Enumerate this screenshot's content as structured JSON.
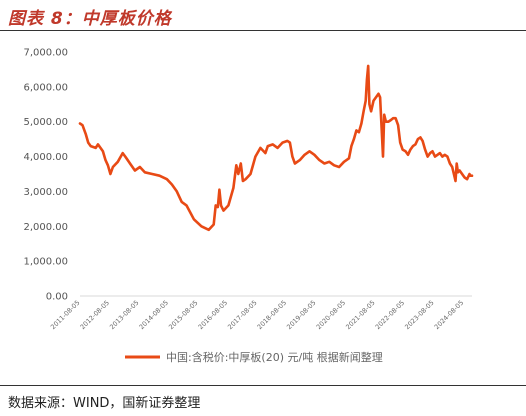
{
  "header": {
    "title": "图表 8：中厚板价格"
  },
  "footer": {
    "source": "数据来源：WIND，国新证券整理"
  },
  "colors": {
    "line": "#e84a15",
    "axis": "#d9d9d9",
    "title": "#c0392b"
  },
  "chart_data": {
    "type": "line",
    "title": "",
    "xlabel": "",
    "ylabel": "",
    "ylim": [
      0,
      7000
    ],
    "y_ticks": [
      "0.00",
      "1,000.00",
      "2,000.00",
      "3,000.00",
      "4,000.00",
      "5,000.00",
      "6,000.00",
      "7,000.00"
    ],
    "y_tick_values": [
      0,
      1000,
      2000,
      3000,
      4000,
      5000,
      6000,
      7000
    ],
    "x_range": [
      "2011-08-05",
      "2024-11-15"
    ],
    "x_tick_labels": [
      "2011-08-05",
      "2012-08-05",
      "2013-08-05",
      "2014-08-05",
      "2015-08-05",
      "2016-08-05",
      "2017-08-05",
      "2018-08-05",
      "2019-08-05",
      "2020-08-05",
      "2021-08-05",
      "2022-08-05",
      "2023-08-05",
      "2024-08-05"
    ],
    "grid": false,
    "legend_position": "bottom",
    "series": [
      {
        "name": "中国:含税价:中厚板(20) 元/吨 根据新闻整理",
        "color": "#e84a15",
        "points": [
          [
            "2011-08-05",
            4950
          ],
          [
            "2011-09-05",
            4900
          ],
          [
            "2011-10-15",
            4650
          ],
          [
            "2011-11-15",
            4400
          ],
          [
            "2011-12-15",
            4300
          ],
          [
            "2012-02-15",
            4250
          ],
          [
            "2012-03-15",
            4350
          ],
          [
            "2012-05-15",
            4150
          ],
          [
            "2012-06-15",
            3900
          ],
          [
            "2012-07-15",
            3750
          ],
          [
            "2012-08-15",
            3500
          ],
          [
            "2012-09-15",
            3700
          ],
          [
            "2012-11-15",
            3850
          ],
          [
            "2013-01-15",
            4100
          ],
          [
            "2013-02-15",
            4000
          ],
          [
            "2013-04-15",
            3800
          ],
          [
            "2013-06-15",
            3600
          ],
          [
            "2013-08-15",
            3700
          ],
          [
            "2013-10-15",
            3550
          ],
          [
            "2014-01-15",
            3500
          ],
          [
            "2014-04-15",
            3450
          ],
          [
            "2014-07-15",
            3350
          ],
          [
            "2014-09-15",
            3200
          ],
          [
            "2014-11-15",
            3000
          ],
          [
            "2015-01-15",
            2700
          ],
          [
            "2015-03-15",
            2600
          ],
          [
            "2015-06-15",
            2200
          ],
          [
            "2015-09-15",
            2000
          ],
          [
            "2015-12-15",
            1900
          ],
          [
            "2016-02-15",
            2050
          ],
          [
            "2016-03-10",
            2600
          ],
          [
            "2016-04-05",
            2550
          ],
          [
            "2016-04-25",
            3050
          ],
          [
            "2016-05-15",
            2600
          ],
          [
            "2016-06-15",
            2450
          ],
          [
            "2016-08-15",
            2600
          ],
          [
            "2016-10-15",
            3100
          ],
          [
            "2016-11-20",
            3750
          ],
          [
            "2016-12-15",
            3500
          ],
          [
            "2017-01-15",
            3800
          ],
          [
            "2017-02-10",
            3300
          ],
          [
            "2017-03-15",
            3350
          ],
          [
            "2017-05-15",
            3500
          ],
          [
            "2017-07-15",
            4000
          ],
          [
            "2017-09-15",
            4250
          ],
          [
            "2017-11-15",
            4100
          ],
          [
            "2017-12-15",
            4300
          ],
          [
            "2018-02-15",
            4350
          ],
          [
            "2018-04-15",
            4250
          ],
          [
            "2018-06-15",
            4400
          ],
          [
            "2018-08-15",
            4450
          ],
          [
            "2018-09-15",
            4400
          ],
          [
            "2018-10-15",
            4000
          ],
          [
            "2018-11-15",
            3800
          ],
          [
            "2019-01-15",
            3900
          ],
          [
            "2019-03-15",
            4050
          ],
          [
            "2019-05-15",
            4150
          ],
          [
            "2019-07-15",
            4050
          ],
          [
            "2019-09-15",
            3900
          ],
          [
            "2019-11-15",
            3800
          ],
          [
            "2020-01-15",
            3850
          ],
          [
            "2020-03-15",
            3750
          ],
          [
            "2020-05-15",
            3700
          ],
          [
            "2020-07-15",
            3850
          ],
          [
            "2020-09-15",
            3950
          ],
          [
            "2020-10-15",
            4300
          ],
          [
            "2020-11-15",
            4500
          ],
          [
            "2020-12-15",
            4750
          ],
          [
            "2021-01-15",
            4700
          ],
          [
            "2021-02-15",
            4950
          ],
          [
            "2021-03-15",
            5300
          ],
          [
            "2021-04-10",
            5600
          ],
          [
            "2021-04-25",
            6200
          ],
          [
            "2021-05-10",
            6600
          ],
          [
            "2021-05-25",
            5500
          ],
          [
            "2021-06-15",
            5300
          ],
          [
            "2021-07-15",
            5600
          ],
          [
            "2021-08-15",
            5700
          ],
          [
            "2021-09-15",
            5800
          ],
          [
            "2021-10-05",
            5700
          ],
          [
            "2021-10-20",
            5000
          ],
          [
            "2021-11-10",
            4000
          ],
          [
            "2021-11-25",
            5200
          ],
          [
            "2021-12-15",
            5000
          ],
          [
            "2022-01-15",
            5000
          ],
          [
            "2022-02-15",
            5050
          ],
          [
            "2022-03-15",
            5100
          ],
          [
            "2022-04-15",
            5100
          ],
          [
            "2022-05-15",
            4900
          ],
          [
            "2022-06-10",
            4400
          ],
          [
            "2022-07-10",
            4200
          ],
          [
            "2022-08-15",
            4150
          ],
          [
            "2022-09-15",
            4050
          ],
          [
            "2022-10-15",
            4200
          ],
          [
            "2022-11-15",
            4300
          ],
          [
            "2022-12-15",
            4350
          ],
          [
            "2023-01-15",
            4500
          ],
          [
            "2023-02-15",
            4550
          ],
          [
            "2023-03-15",
            4450
          ],
          [
            "2023-04-15",
            4200
          ],
          [
            "2023-05-15",
            4000
          ],
          [
            "2023-06-15",
            4100
          ],
          [
            "2023-07-15",
            4150
          ],
          [
            "2023-08-15",
            4000
          ],
          [
            "2023-09-15",
            4050
          ],
          [
            "2023-10-15",
            4100
          ],
          [
            "2023-11-15",
            4000
          ],
          [
            "2023-12-15",
            4050
          ],
          [
            "2024-01-15",
            4000
          ],
          [
            "2024-02-15",
            3800
          ],
          [
            "2024-03-15",
            3700
          ],
          [
            "2024-04-15",
            3400
          ],
          [
            "2024-04-25",
            3300
          ],
          [
            "2024-05-10",
            3800
          ],
          [
            "2024-05-25",
            3550
          ],
          [
            "2024-06-15",
            3600
          ],
          [
            "2024-07-15",
            3500
          ],
          [
            "2024-08-15",
            3400
          ],
          [
            "2024-09-15",
            3350
          ],
          [
            "2024-10-15",
            3500
          ],
          [
            "2024-10-25",
            3450
          ],
          [
            "2024-11-15",
            3450
          ]
        ]
      }
    ]
  }
}
